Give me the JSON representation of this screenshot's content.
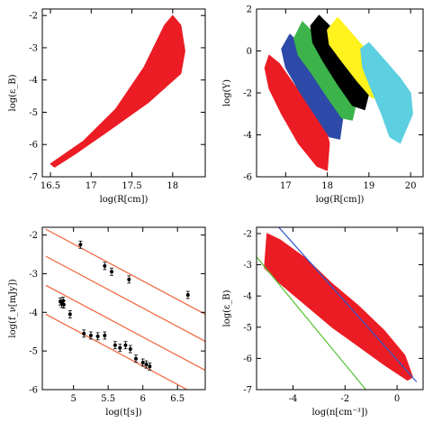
{
  "chart_data": [
    {
      "panel": "top-left",
      "type": "area",
      "xlabel": "log(R[cm])",
      "ylabel": "log(ε_B)",
      "xlim": [
        16.4,
        18.4
      ],
      "ylim": [
        -7,
        -1.8
      ],
      "xticks": [
        "16.5",
        "17",
        "17.5",
        "18"
      ],
      "yticks": [
        "-2",
        "-3",
        "-4",
        "-5",
        "-6",
        "-7"
      ],
      "xtick_values": [
        16.5,
        17,
        17.5,
        18
      ],
      "ytick_values": [
        -2,
        -3,
        -4,
        -5,
        -6,
        -7
      ],
      "regions": [
        {
          "color": "#ec1c24",
          "outline": [
            [
              16.5,
              -6.6
            ],
            [
              16.9,
              -5.9
            ],
            [
              17.3,
              -4.9
            ],
            [
              17.65,
              -3.6
            ],
            [
              17.9,
              -2.3
            ],
            [
              18.0,
              -2.0
            ],
            [
              18.1,
              -2.3
            ],
            [
              18.15,
              -3.1
            ],
            [
              18.1,
              -3.8
            ],
            [
              17.7,
              -4.7
            ],
            [
              17.2,
              -5.6
            ],
            [
              16.8,
              -6.3
            ],
            [
              16.55,
              -6.7
            ]
          ]
        }
      ]
    },
    {
      "panel": "top-right",
      "type": "area",
      "xlabel": "log(R[cm])",
      "ylabel": "log(Y)",
      "xlim": [
        16.3,
        20.3
      ],
      "ylim": [
        -6,
        2
      ],
      "xticks": [
        "17",
        "18",
        "19",
        "20"
      ],
      "yticks": [
        "2",
        "0",
        "-2",
        "-4",
        "-6"
      ],
      "xtick_values": [
        17,
        18,
        19,
        20
      ],
      "ytick_values": [
        2,
        0,
        -2,
        -4,
        -6
      ],
      "regions": [
        {
          "color": "#ec1c24",
          "outline": [
            [
              16.5,
              -0.8
            ],
            [
              16.6,
              -0.2
            ],
            [
              16.85,
              -0.6
            ],
            [
              17.2,
              -1.6
            ],
            [
              17.6,
              -2.6
            ],
            [
              17.95,
              -3.6
            ],
            [
              18.05,
              -4.4
            ],
            [
              18.0,
              -5.7
            ],
            [
              17.75,
              -5.5
            ],
            [
              17.3,
              -4.4
            ],
            [
              16.9,
              -3.0
            ],
            [
              16.6,
              -1.8
            ]
          ]
        },
        {
          "color": "#2e4aa8",
          "outline": [
            [
              16.9,
              0.1
            ],
            [
              17.1,
              0.8
            ],
            [
              17.4,
              0.2
            ],
            [
              17.7,
              -0.6
            ],
            [
              18.1,
              -1.6
            ],
            [
              18.4,
              -2.8
            ],
            [
              18.3,
              -4.2
            ],
            [
              18.05,
              -4.1
            ],
            [
              17.75,
              -3.2
            ],
            [
              17.35,
              -2.0
            ],
            [
              17.0,
              -0.8
            ]
          ]
        },
        {
          "color": "#3cb44b",
          "outline": [
            [
              17.2,
              0.6
            ],
            [
              17.4,
              1.4
            ],
            [
              17.7,
              0.8
            ],
            [
              18.1,
              0.0
            ],
            [
              18.5,
              -0.8
            ],
            [
              18.75,
              -2.0
            ],
            [
              18.6,
              -3.3
            ],
            [
              18.35,
              -3.2
            ],
            [
              18.0,
              -2.2
            ],
            [
              17.6,
              -1.0
            ],
            [
              17.3,
              -0.2
            ]
          ]
        },
        {
          "color": "#000000",
          "outline": [
            [
              17.6,
              1.2
            ],
            [
              17.8,
              1.7
            ],
            [
              18.1,
              1.1
            ],
            [
              18.5,
              0.3
            ],
            [
              18.85,
              -0.6
            ],
            [
              19.05,
              -1.6
            ],
            [
              18.9,
              -2.8
            ],
            [
              18.6,
              -2.6
            ],
            [
              18.25,
              -1.6
            ],
            [
              17.9,
              -0.5
            ],
            [
              17.65,
              0.4
            ]
          ]
        },
        {
          "color": "#fff21d",
          "outline": [
            [
              18.0,
              1.0
            ],
            [
              18.25,
              1.6
            ],
            [
              18.6,
              0.8
            ],
            [
              19.0,
              -0.1
            ],
            [
              19.3,
              -0.8
            ],
            [
              19.5,
              -1.5
            ],
            [
              19.3,
              -2.4
            ],
            [
              19.05,
              -2.2
            ],
            [
              18.7,
              -1.4
            ],
            [
              18.35,
              -0.5
            ],
            [
              18.05,
              0.3
            ]
          ]
        },
        {
          "color": "#5ccfe0",
          "outline": [
            [
              18.8,
              0.1
            ],
            [
              19.0,
              0.4
            ],
            [
              19.4,
              -0.5
            ],
            [
              19.75,
              -1.3
            ],
            [
              20.0,
              -2.0
            ],
            [
              20.05,
              -3.0
            ],
            [
              19.75,
              -4.4
            ],
            [
              19.5,
              -4.1
            ],
            [
              19.3,
              -3.0
            ],
            [
              19.05,
              -1.8
            ],
            [
              18.85,
              -0.8
            ]
          ]
        }
      ]
    },
    {
      "panel": "bottom-left",
      "type": "scatter",
      "xlabel": "log(t[s])",
      "ylabel": "log(f_ν[mJy])",
      "xlim": [
        4.55,
        6.9
      ],
      "ylim": [
        -6,
        -1.8
      ],
      "xticks": [
        "5",
        "5.5",
        "6",
        "6.5"
      ],
      "yticks": [
        "-2",
        "-3",
        "-4",
        "-5",
        "-6"
      ],
      "xtick_values": [
        5,
        5.5,
        6,
        6.5
      ],
      "ytick_values": [
        -2,
        -3,
        -4,
        -5,
        -6
      ],
      "lines": [
        {
          "color": "#f0643c",
          "points": [
            [
              4.6,
              -1.85
            ],
            [
              6.9,
              -4.05
            ]
          ]
        },
        {
          "color": "#f0643c",
          "points": [
            [
              4.6,
              -2.55
            ],
            [
              6.9,
              -4.75
            ]
          ]
        },
        {
          "color": "#f0643c",
          "points": [
            [
              4.6,
              -3.3
            ],
            [
              6.9,
              -5.5
            ]
          ]
        },
        {
          "color": "#f0643c",
          "points": [
            [
              4.6,
              -4.05
            ],
            [
              6.9,
              -6.25
            ]
          ]
        }
      ],
      "points": [
        [
          4.81,
          -3.72
        ],
        [
          4.83,
          -3.78
        ],
        [
          4.85,
          -3.7
        ],
        [
          4.86,
          -3.8
        ],
        [
          4.95,
          -4.05
        ],
        [
          5.15,
          -4.55
        ],
        [
          5.25,
          -4.6
        ],
        [
          5.35,
          -4.62
        ],
        [
          5.45,
          -4.6
        ],
        [
          5.6,
          -4.85
        ],
        [
          5.67,
          -4.92
        ],
        [
          5.75,
          -4.85
        ],
        [
          5.82,
          -4.95
        ],
        [
          5.9,
          -5.2
        ],
        [
          6.0,
          -5.3
        ],
        [
          6.1,
          -5.4
        ],
        [
          6.05,
          -5.35
        ],
        [
          5.1,
          -2.25
        ],
        [
          5.45,
          -2.8
        ],
        [
          5.55,
          -2.95
        ],
        [
          5.8,
          -3.15
        ],
        [
          6.65,
          -3.55
        ]
      ]
    },
    {
      "panel": "bottom-right",
      "type": "area",
      "xlabel": "log(n[cm⁻³])",
      "ylabel": "log(ε_B)",
      "xlim": [
        -5.4,
        1.0
      ],
      "ylim": [
        -7,
        -1.8
      ],
      "xticks": [
        "-4",
        "-2",
        "0"
      ],
      "yticks": [
        "-2",
        "-3",
        "-4",
        "-5",
        "-6",
        "-7"
      ],
      "xtick_values": [
        -4,
        -2,
        0
      ],
      "ytick_values": [
        -2,
        -3,
        -4,
        -5,
        -6,
        -7
      ],
      "regions": [
        {
          "color": "#ec1c24",
          "outline": [
            [
              -5.0,
              -2.0
            ],
            [
              -4.5,
              -2.2
            ],
            [
              -3.5,
              -2.8
            ],
            [
              -2.5,
              -3.6
            ],
            [
              -1.5,
              -4.3
            ],
            [
              -0.5,
              -5.1
            ],
            [
              0.3,
              -5.9
            ],
            [
              0.6,
              -6.6
            ],
            [
              0.4,
              -6.7
            ],
            [
              -0.5,
              -6.2
            ],
            [
              -1.5,
              -5.6
            ],
            [
              -2.5,
              -5.0
            ],
            [
              -3.5,
              -4.3
            ],
            [
              -4.5,
              -3.6
            ],
            [
              -5.1,
              -3.1
            ]
          ]
        }
      ],
      "lines": [
        {
          "color": "#2f56c8",
          "points": [
            [
              -4.6,
              -1.75
            ],
            [
              0.75,
              -6.75
            ]
          ]
        },
        {
          "color": "#55c233",
          "points": [
            [
              -5.4,
              -2.75
            ],
            [
              -1.2,
              -7.0
            ]
          ]
        }
      ]
    }
  ]
}
